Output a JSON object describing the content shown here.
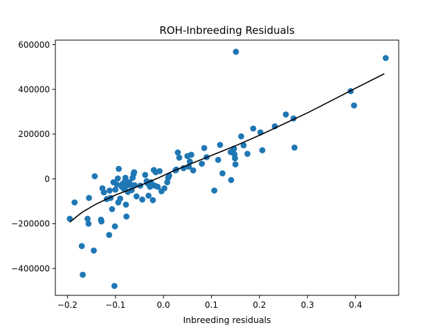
{
  "chart_data": {
    "type": "scatter",
    "title": "ROH-Inbreeding Residuals",
    "xlabel": "Inbreeding residuals",
    "ylabel": "",
    "xlim": [
      -0.225,
      0.49
    ],
    "ylim": [
      -520000,
      620000
    ],
    "x_ticks": [
      -0.2,
      -0.1,
      0.0,
      0.1,
      0.2,
      0.3,
      0.4
    ],
    "x_tick_labels": [
      "−0.2",
      "−0.1",
      "0.0",
      "0.1",
      "0.2",
      "0.3",
      "0.4"
    ],
    "y_ticks": [
      -400000,
      -200000,
      0,
      200000,
      400000,
      600000
    ],
    "y_tick_labels": [
      "−400000",
      "−200000",
      "0",
      "200000",
      "400000",
      "600000"
    ],
    "grid": false,
    "colors": {
      "points": "#1f77b4",
      "fit_line": "#000000",
      "axes": "#000000"
    },
    "series": [
      {
        "kind": "points",
        "points": [
          [
            -0.195,
            -178000
          ],
          [
            -0.185,
            -105000
          ],
          [
            -0.17,
            -300000
          ],
          [
            -0.168,
            -428000
          ],
          [
            -0.158,
            -178000
          ],
          [
            -0.156,
            -200000
          ],
          [
            -0.155,
            -85000
          ],
          [
            -0.145,
            -320000
          ],
          [
            -0.143,
            12000
          ],
          [
            -0.13,
            -182000
          ],
          [
            -0.129,
            -190000
          ],
          [
            -0.127,
            -42000
          ],
          [
            -0.124,
            -60000
          ],
          [
            -0.118,
            -90000
          ],
          [
            -0.113,
            -250000
          ],
          [
            -0.112,
            -52000
          ],
          [
            -0.11,
            -85000
          ],
          [
            -0.107,
            -135000
          ],
          [
            -0.104,
            -15000
          ],
          [
            -0.102,
            -478000
          ],
          [
            -0.101,
            -212000
          ],
          [
            -0.1,
            -48000
          ],
          [
            -0.097,
            -25000
          ],
          [
            -0.095,
            2000
          ],
          [
            -0.094,
            -105000
          ],
          [
            -0.093,
            45000
          ],
          [
            -0.09,
            -88000
          ],
          [
            -0.087,
            -35000
          ],
          [
            -0.085,
            -22000
          ],
          [
            -0.082,
            -45000
          ],
          [
            -0.08,
            -10000
          ],
          [
            -0.079,
            5000
          ],
          [
            -0.078,
            -115000
          ],
          [
            -0.077,
            -168000
          ],
          [
            -0.076,
            -30000
          ],
          [
            -0.074,
            -58000
          ],
          [
            -0.071,
            -15000
          ],
          [
            -0.069,
            -25000
          ],
          [
            -0.066,
            -50000
          ],
          [
            -0.064,
            5000
          ],
          [
            -0.062,
            22000
          ],
          [
            -0.061,
            30000
          ],
          [
            -0.06,
            -28000
          ],
          [
            -0.056,
            -78000
          ],
          [
            -0.048,
            -30000
          ],
          [
            -0.044,
            -92000
          ],
          [
            -0.038,
            18000
          ],
          [
            -0.035,
            -10000
          ],
          [
            -0.033,
            -20000
          ],
          [
            -0.031,
            -75000
          ],
          [
            -0.028,
            -35000
          ],
          [
            -0.026,
            -15000
          ],
          [
            -0.024,
            -28000
          ],
          [
            -0.022,
            -95000
          ],
          [
            -0.02,
            40000
          ],
          [
            -0.018,
            -30000
          ],
          [
            -0.016,
            30000
          ],
          [
            -0.012,
            -35000
          ],
          [
            -0.008,
            35000
          ],
          [
            -0.004,
            -55000
          ],
          [
            0.002,
            -42000
          ],
          [
            0.008,
            -15000
          ],
          [
            0.01,
            5000
          ],
          [
            0.012,
            15000
          ],
          [
            0.025,
            38000
          ],
          [
            0.027,
            42000
          ],
          [
            0.03,
            118000
          ],
          [
            0.033,
            95000
          ],
          [
            0.042,
            48000
          ],
          [
            0.05,
            102000
          ],
          [
            0.053,
            55000
          ],
          [
            0.055,
            78000
          ],
          [
            0.058,
            108000
          ],
          [
            0.062,
            38000
          ],
          [
            0.08,
            68000
          ],
          [
            0.085,
            138000
          ],
          [
            0.09,
            97000
          ],
          [
            0.106,
            -52000
          ],
          [
            0.114,
            85000
          ],
          [
            0.118,
            152000
          ],
          [
            0.123,
            25000
          ],
          [
            0.14,
            120000
          ],
          [
            0.141,
            -5000
          ],
          [
            0.145,
            128000
          ],
          [
            0.147,
            135000
          ],
          [
            0.148,
            110000
          ],
          [
            0.149,
            92000
          ],
          [
            0.15,
            65000
          ],
          [
            0.151,
            568000
          ],
          [
            0.162,
            190000
          ],
          [
            0.167,
            150000
          ],
          [
            0.175,
            112000
          ],
          [
            0.187,
            225000
          ],
          [
            0.202,
            208000
          ],
          [
            0.206,
            128000
          ],
          [
            0.232,
            235000
          ],
          [
            0.255,
            288000
          ],
          [
            0.271,
            270000
          ],
          [
            0.273,
            140000
          ],
          [
            0.39,
            392000
          ],
          [
            0.397,
            328000
          ],
          [
            0.463,
            540000
          ]
        ]
      },
      {
        "kind": "line",
        "points": [
          [
            -0.195,
            -193000
          ],
          [
            -0.17,
            -150000
          ],
          [
            -0.14,
            -112000
          ],
          [
            -0.1,
            -72000
          ],
          [
            -0.07,
            -48000
          ],
          [
            -0.04,
            -22000
          ],
          [
            -0.01,
            5000
          ],
          [
            0.02,
            35000
          ],
          [
            0.06,
            70000
          ],
          [
            0.1,
            105000
          ],
          [
            0.15,
            148000
          ],
          [
            0.2,
            195000
          ],
          [
            0.25,
            245000
          ],
          [
            0.3,
            295000
          ],
          [
            0.35,
            350000
          ],
          [
            0.4,
            405000
          ],
          [
            0.46,
            470000
          ]
        ]
      }
    ]
  }
}
